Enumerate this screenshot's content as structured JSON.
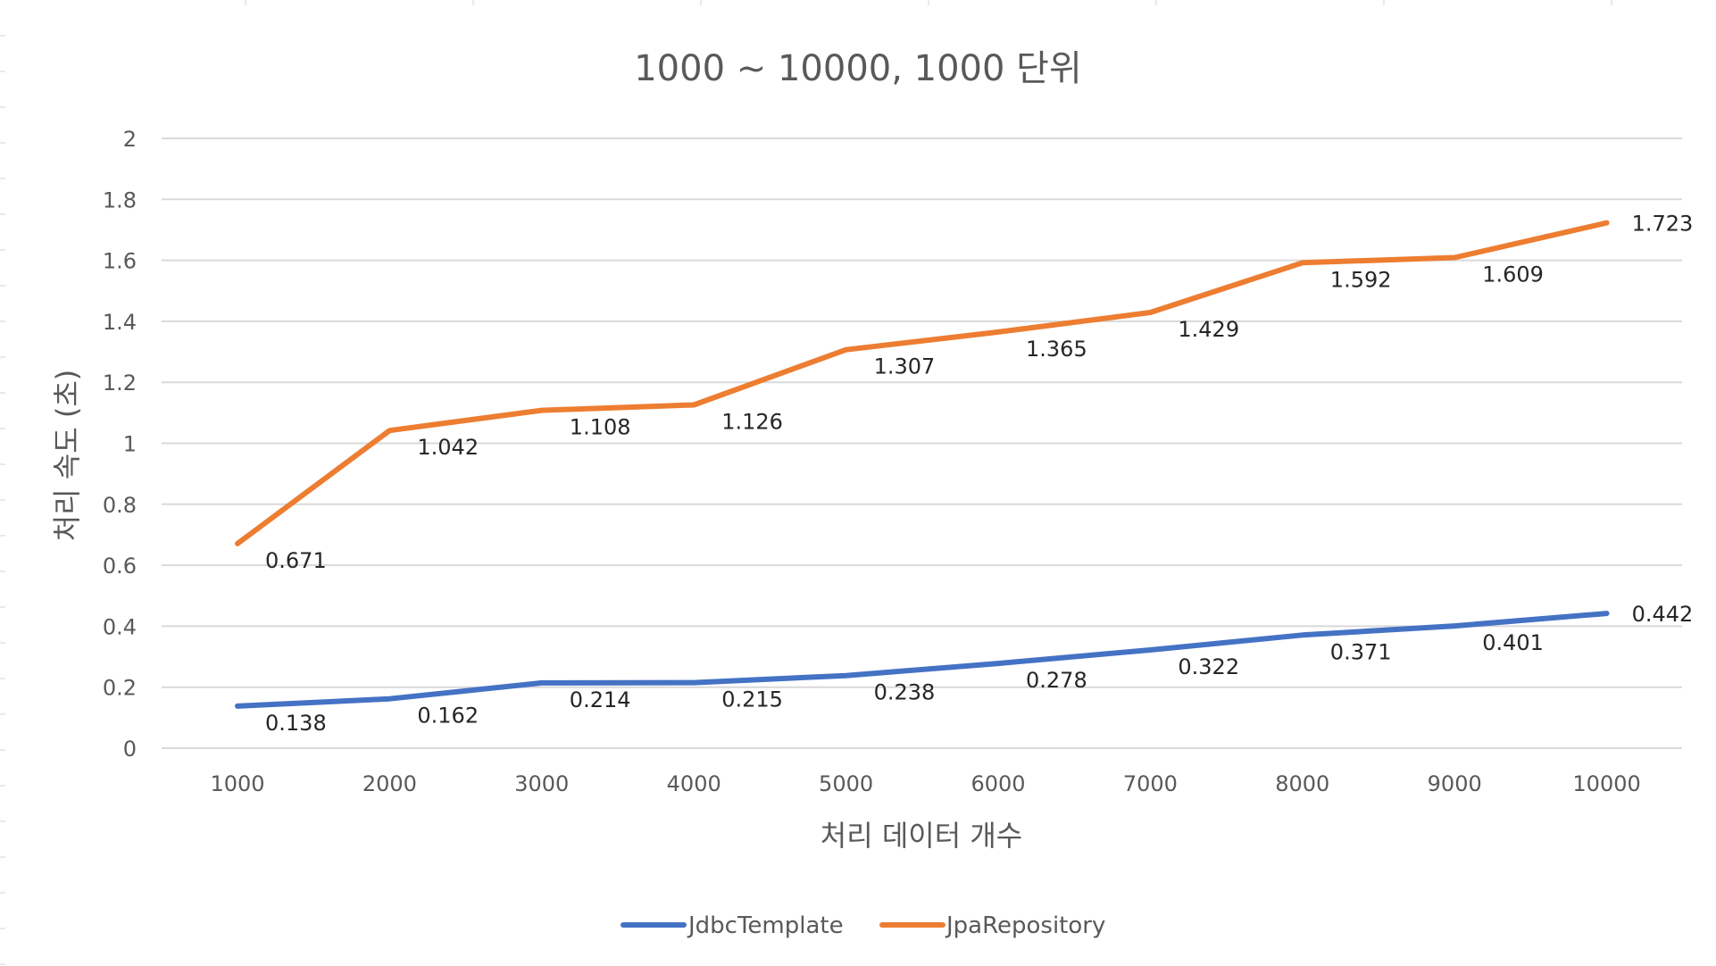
{
  "chart_data": {
    "type": "line",
    "title": "1000 ~ 10000, 1000 단위",
    "xlabel": "처리 데이터 개수",
    "ylabel": "처리 속도 (초)",
    "categories": [
      "1000",
      "2000",
      "3000",
      "4000",
      "5000",
      "6000",
      "7000",
      "8000",
      "9000",
      "10000"
    ],
    "ylim": [
      0,
      2
    ],
    "yticks": [
      "0",
      "0.2",
      "0.4",
      "0.6",
      "0.8",
      "1",
      "1.2",
      "1.4",
      "1.6",
      "1.8",
      "2"
    ],
    "grid": true,
    "legend_position": "bottom",
    "series": [
      {
        "name": "JdbcTemplate",
        "color": "#4472C4",
        "values": [
          0.138,
          0.162,
          0.214,
          0.215,
          0.238,
          0.278,
          0.322,
          0.371,
          0.401,
          0.442
        ],
        "labels": [
          "0.138",
          "0.162",
          "0.214",
          "0.215",
          "0.238",
          "0.278",
          "0.322",
          "0.371",
          "0.401",
          "0.442"
        ]
      },
      {
        "name": "JpaRepository",
        "color": "#ED7D31",
        "values": [
          0.671,
          1.042,
          1.108,
          1.126,
          1.307,
          1.365,
          1.429,
          1.592,
          1.609,
          1.723
        ],
        "labels": [
          "0.671",
          "1.042",
          "1.108",
          "1.126",
          "1.307",
          "1.365",
          "1.429",
          "1.592",
          "1.609",
          "1.723"
        ]
      }
    ]
  }
}
